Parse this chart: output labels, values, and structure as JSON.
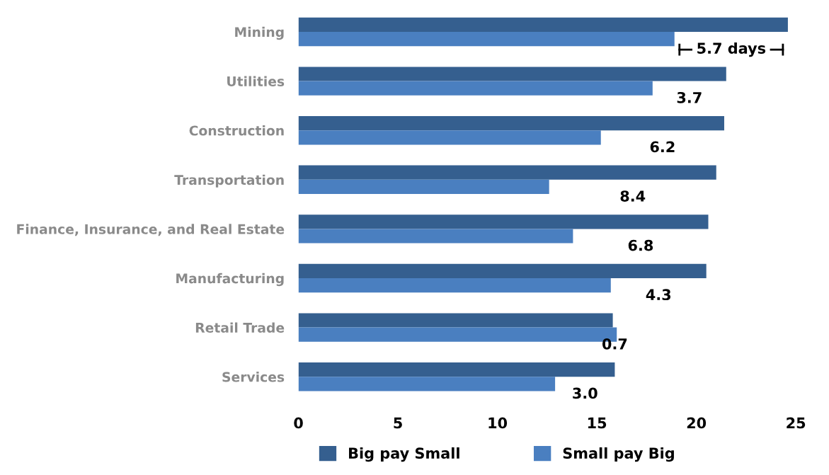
{
  "chart_data": {
    "type": "bar",
    "orientation": "horizontal",
    "categories": [
      "Mining",
      "Utilities",
      "Construction",
      "Transportation",
      "Finance, Insurance, and Real Estate",
      "Manufacturing",
      "Retail Trade",
      "Services"
    ],
    "series": [
      {
        "name": "Big pay Small",
        "color": "#355f8f",
        "values": [
          24.6,
          21.5,
          21.4,
          21.0,
          20.6,
          20.5,
          15.8,
          15.9
        ]
      },
      {
        "name": "Small pay Big",
        "color": "#4a7fc0",
        "values": [
          18.9,
          17.8,
          15.2,
          12.6,
          13.8,
          15.7,
          16.0,
          12.9
        ]
      }
    ],
    "xlim": [
      0,
      25
    ],
    "xticks": [
      0,
      5,
      10,
      15,
      20,
      25
    ],
    "grid": false,
    "legend": "bottom",
    "annotations": [
      "5.7 days",
      "3.7",
      "6.2",
      "8.4",
      "6.8",
      "4.3",
      "0.7",
      "3.0"
    ]
  }
}
